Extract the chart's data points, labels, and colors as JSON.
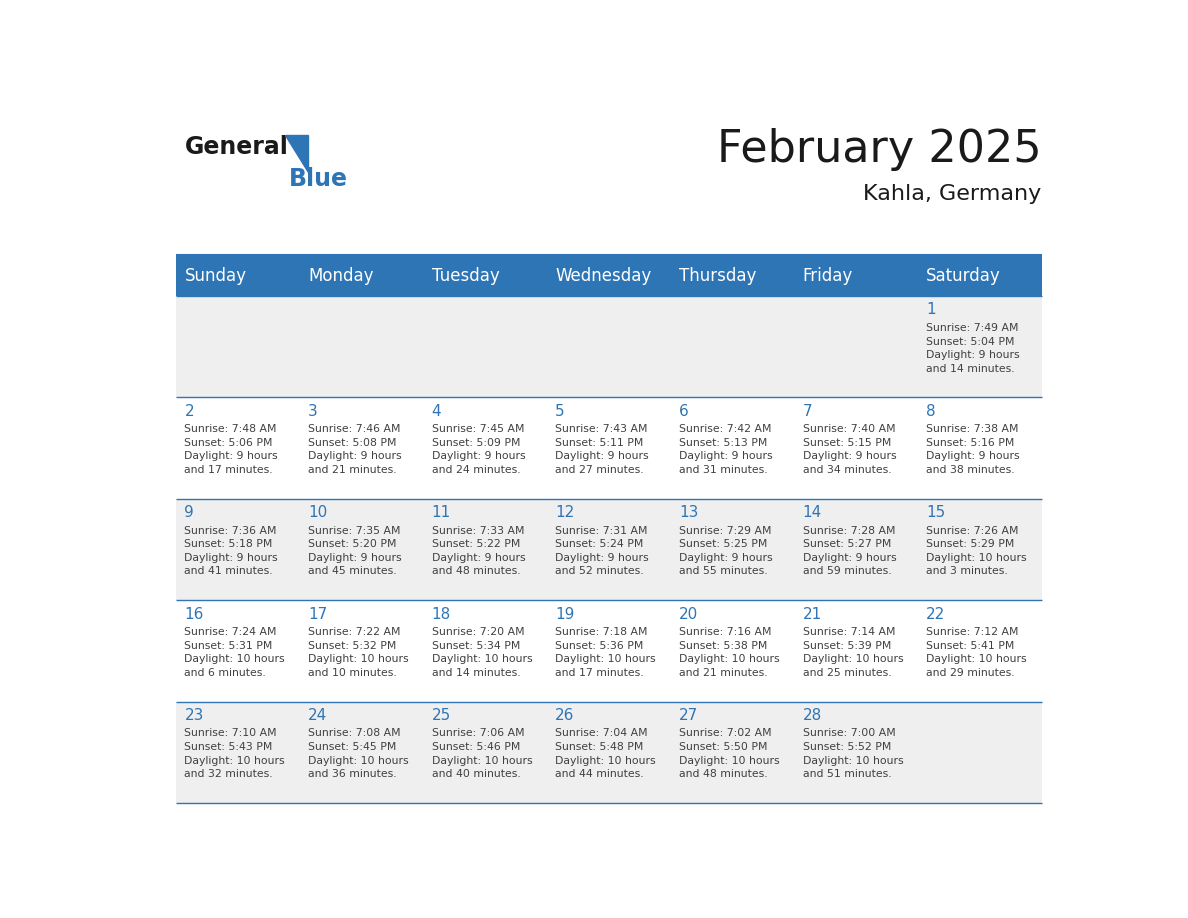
{
  "title": "February 2025",
  "subtitle": "Kahla, Germany",
  "header_bg": "#2E75B6",
  "header_text_color": "#FFFFFF",
  "day_names": [
    "Sunday",
    "Monday",
    "Tuesday",
    "Wednesday",
    "Thursday",
    "Friday",
    "Saturday"
  ],
  "cell_bg_even": "#EFEFEF",
  "cell_bg_odd": "#FFFFFF",
  "date_color": "#2E75B6",
  "text_color": "#404040",
  "line_color": "#2E75B6",
  "calendar_data": [
    [
      {
        "day": "",
        "info": ""
      },
      {
        "day": "",
        "info": ""
      },
      {
        "day": "",
        "info": ""
      },
      {
        "day": "",
        "info": ""
      },
      {
        "day": "",
        "info": ""
      },
      {
        "day": "",
        "info": ""
      },
      {
        "day": "1",
        "info": "Sunrise: 7:49 AM\nSunset: 5:04 PM\nDaylight: 9 hours\nand 14 minutes."
      }
    ],
    [
      {
        "day": "2",
        "info": "Sunrise: 7:48 AM\nSunset: 5:06 PM\nDaylight: 9 hours\nand 17 minutes."
      },
      {
        "day": "3",
        "info": "Sunrise: 7:46 AM\nSunset: 5:08 PM\nDaylight: 9 hours\nand 21 minutes."
      },
      {
        "day": "4",
        "info": "Sunrise: 7:45 AM\nSunset: 5:09 PM\nDaylight: 9 hours\nand 24 minutes."
      },
      {
        "day": "5",
        "info": "Sunrise: 7:43 AM\nSunset: 5:11 PM\nDaylight: 9 hours\nand 27 minutes."
      },
      {
        "day": "6",
        "info": "Sunrise: 7:42 AM\nSunset: 5:13 PM\nDaylight: 9 hours\nand 31 minutes."
      },
      {
        "day": "7",
        "info": "Sunrise: 7:40 AM\nSunset: 5:15 PM\nDaylight: 9 hours\nand 34 minutes."
      },
      {
        "day": "8",
        "info": "Sunrise: 7:38 AM\nSunset: 5:16 PM\nDaylight: 9 hours\nand 38 minutes."
      }
    ],
    [
      {
        "day": "9",
        "info": "Sunrise: 7:36 AM\nSunset: 5:18 PM\nDaylight: 9 hours\nand 41 minutes."
      },
      {
        "day": "10",
        "info": "Sunrise: 7:35 AM\nSunset: 5:20 PM\nDaylight: 9 hours\nand 45 minutes."
      },
      {
        "day": "11",
        "info": "Sunrise: 7:33 AM\nSunset: 5:22 PM\nDaylight: 9 hours\nand 48 minutes."
      },
      {
        "day": "12",
        "info": "Sunrise: 7:31 AM\nSunset: 5:24 PM\nDaylight: 9 hours\nand 52 minutes."
      },
      {
        "day": "13",
        "info": "Sunrise: 7:29 AM\nSunset: 5:25 PM\nDaylight: 9 hours\nand 55 minutes."
      },
      {
        "day": "14",
        "info": "Sunrise: 7:28 AM\nSunset: 5:27 PM\nDaylight: 9 hours\nand 59 minutes."
      },
      {
        "day": "15",
        "info": "Sunrise: 7:26 AM\nSunset: 5:29 PM\nDaylight: 10 hours\nand 3 minutes."
      }
    ],
    [
      {
        "day": "16",
        "info": "Sunrise: 7:24 AM\nSunset: 5:31 PM\nDaylight: 10 hours\nand 6 minutes."
      },
      {
        "day": "17",
        "info": "Sunrise: 7:22 AM\nSunset: 5:32 PM\nDaylight: 10 hours\nand 10 minutes."
      },
      {
        "day": "18",
        "info": "Sunrise: 7:20 AM\nSunset: 5:34 PM\nDaylight: 10 hours\nand 14 minutes."
      },
      {
        "day": "19",
        "info": "Sunrise: 7:18 AM\nSunset: 5:36 PM\nDaylight: 10 hours\nand 17 minutes."
      },
      {
        "day": "20",
        "info": "Sunrise: 7:16 AM\nSunset: 5:38 PM\nDaylight: 10 hours\nand 21 minutes."
      },
      {
        "day": "21",
        "info": "Sunrise: 7:14 AM\nSunset: 5:39 PM\nDaylight: 10 hours\nand 25 minutes."
      },
      {
        "day": "22",
        "info": "Sunrise: 7:12 AM\nSunset: 5:41 PM\nDaylight: 10 hours\nand 29 minutes."
      }
    ],
    [
      {
        "day": "23",
        "info": "Sunrise: 7:10 AM\nSunset: 5:43 PM\nDaylight: 10 hours\nand 32 minutes."
      },
      {
        "day": "24",
        "info": "Sunrise: 7:08 AM\nSunset: 5:45 PM\nDaylight: 10 hours\nand 36 minutes."
      },
      {
        "day": "25",
        "info": "Sunrise: 7:06 AM\nSunset: 5:46 PM\nDaylight: 10 hours\nand 40 minutes."
      },
      {
        "day": "26",
        "info": "Sunrise: 7:04 AM\nSunset: 5:48 PM\nDaylight: 10 hours\nand 44 minutes."
      },
      {
        "day": "27",
        "info": "Sunrise: 7:02 AM\nSunset: 5:50 PM\nDaylight: 10 hours\nand 48 minutes."
      },
      {
        "day": "28",
        "info": "Sunrise: 7:00 AM\nSunset: 5:52 PM\nDaylight: 10 hours\nand 51 minutes."
      },
      {
        "day": "",
        "info": ""
      }
    ]
  ],
  "logo_general_color": "#1a1a1a",
  "logo_blue_color": "#2E75B6",
  "logo_triangle_color": "#2E75B6"
}
